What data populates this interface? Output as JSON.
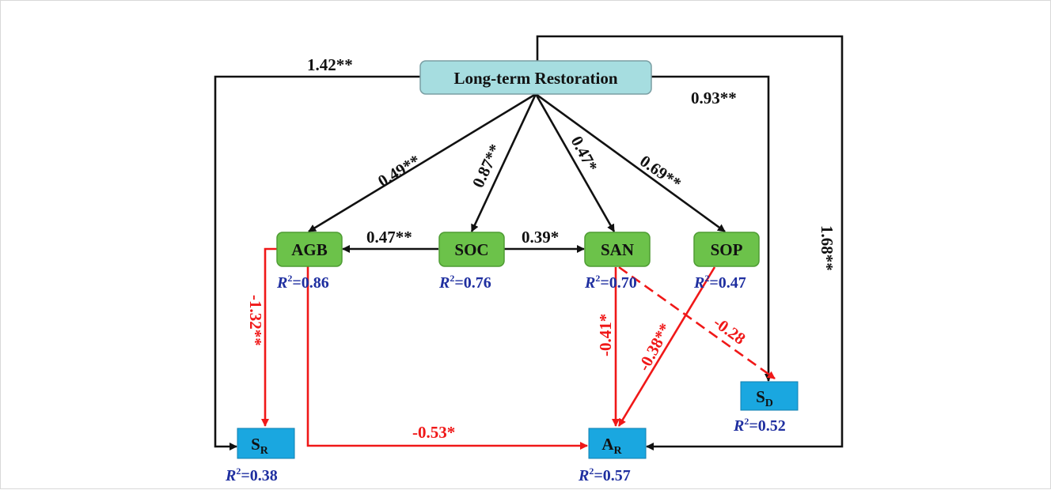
{
  "colors": {
    "positive_path": "#111111",
    "negative_path": "#f01818",
    "root_fill": "#a6dde0",
    "mediator_fill": "#6cc24a",
    "outcome_fill": "#1aa7e0",
    "r2_text": "#1f2fa0"
  },
  "nodes": {
    "restoration": {
      "label": "Long-term Restoration"
    },
    "agb": {
      "label": "AGB",
      "r2_value": "=0.86"
    },
    "soc": {
      "label": "SOC",
      "r2_value": "=0.76"
    },
    "san": {
      "label": "SAN",
      "r2_value": "=0.70"
    },
    "sop": {
      "label": "SOP",
      "r2_value": "=0.47"
    },
    "sr": {
      "label_main": "S",
      "label_sub": "R",
      "r2_value": "=0.38"
    },
    "ar": {
      "label_main": "A",
      "label_sub": "R",
      "r2_value": "=0.57"
    },
    "sd": {
      "label_main": "S",
      "label_sub": "D",
      "r2_value": "=0.52"
    }
  },
  "r2_symbol": {
    "letter": "R",
    "exponent": "2"
  },
  "paths": {
    "restoration_sr": {
      "coefficient": "1.42**",
      "sign": "positive"
    },
    "restoration_sd": {
      "coefficient": "0.93**",
      "sign": "positive"
    },
    "restoration_ar": {
      "coefficient": "1.68**",
      "sign": "positive"
    },
    "restoration_agb": {
      "coefficient": "0.49**",
      "sign": "positive"
    },
    "restoration_soc": {
      "coefficient": "0.87**",
      "sign": "positive"
    },
    "restoration_san": {
      "coefficient": "0.47*",
      "sign": "positive"
    },
    "restoration_sop": {
      "coefficient": "0.69**",
      "sign": "positive"
    },
    "soc_agb": {
      "coefficient": "0.47**",
      "sign": "positive"
    },
    "soc_san": {
      "coefficient": "0.39*",
      "sign": "positive"
    },
    "agb_sr": {
      "coefficient": "-1.32**",
      "sign": "negative"
    },
    "agb_ar": {
      "coefficient": "-0.53*",
      "sign": "negative"
    },
    "san_ar": {
      "coefficient": "-0.41*",
      "sign": "negative"
    },
    "sop_ar": {
      "coefficient": "-0.38**",
      "sign": "negative"
    },
    "san_sd": {
      "coefficient": "-0.28",
      "sign": "negative",
      "style": "dashed"
    }
  }
}
